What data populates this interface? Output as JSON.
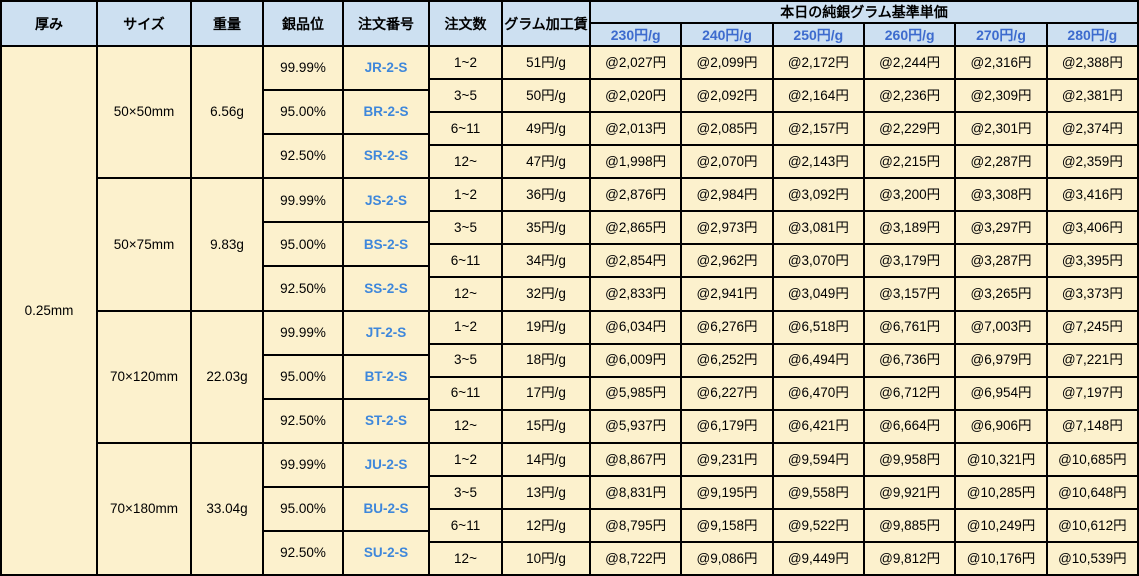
{
  "chart_data": {
    "type": "table",
    "columns": {
      "thickness": "厚み",
      "size": "サイズ",
      "weight": "重量",
      "purity": "銀品位",
      "order_no": "注文番号",
      "order_qty": "注文数",
      "gram_fee": "グラム加工賃",
      "price_group": "本日の純銀グラム基準単価"
    },
    "price_tiers": [
      "230円/g",
      "240円/g",
      "250円/g",
      "260円/g",
      "270円/g",
      "280円/g"
    ],
    "thickness": "0.25mm",
    "blocks": [
      {
        "size": "50×50mm",
        "weight": "6.56g",
        "purities": [
          {
            "purity": "99.99%",
            "order_no": "JR-2-S"
          },
          {
            "purity": "95.00%",
            "order_no": "BR-2-S"
          },
          {
            "purity": "92.50%",
            "order_no": "SR-2-S"
          }
        ],
        "rows": [
          {
            "qty": "1~2",
            "fee": "51円/g",
            "prices": [
              "@2,027円",
              "@2,099円",
              "@2,172円",
              "@2,244円",
              "@2,316円",
              "@2,388円"
            ]
          },
          {
            "qty": "3~5",
            "fee": "50円/g",
            "prices": [
              "@2,020円",
              "@2,092円",
              "@2,164円",
              "@2,236円",
              "@2,309円",
              "@2,381円"
            ]
          },
          {
            "qty": "6~11",
            "fee": "49円/g",
            "prices": [
              "@2,013円",
              "@2,085円",
              "@2,157円",
              "@2,229円",
              "@2,301円",
              "@2,374円"
            ]
          },
          {
            "qty": "12~",
            "fee": "47円/g",
            "prices": [
              "@1,998円",
              "@2,070円",
              "@2,143円",
              "@2,215円",
              "@2,287円",
              "@2,359円"
            ]
          }
        ]
      },
      {
        "size": "50×75mm",
        "weight": "9.83g",
        "purities": [
          {
            "purity": "99.99%",
            "order_no": "JS-2-S"
          },
          {
            "purity": "95.00%",
            "order_no": "BS-2-S"
          },
          {
            "purity": "92.50%",
            "order_no": "SS-2-S"
          }
        ],
        "rows": [
          {
            "qty": "1~2",
            "fee": "36円/g",
            "prices": [
              "@2,876円",
              "@2,984円",
              "@3,092円",
              "@3,200円",
              "@3,308円",
              "@3,416円"
            ]
          },
          {
            "qty": "3~5",
            "fee": "35円/g",
            "prices": [
              "@2,865円",
              "@2,973円",
              "@3,081円",
              "@3,189円",
              "@3,297円",
              "@3,406円"
            ]
          },
          {
            "qty": "6~11",
            "fee": "34円/g",
            "prices": [
              "@2,854円",
              "@2,962円",
              "@3,070円",
              "@3,179円",
              "@3,287円",
              "@3,395円"
            ]
          },
          {
            "qty": "12~",
            "fee": "32円/g",
            "prices": [
              "@2,833円",
              "@2,941円",
              "@3,049円",
              "@3,157円",
              "@3,265円",
              "@3,373円"
            ]
          }
        ]
      },
      {
        "size": "70×120mm",
        "weight": "22.03g",
        "purities": [
          {
            "purity": "99.99%",
            "order_no": "JT-2-S"
          },
          {
            "purity": "95.00%",
            "order_no": "BT-2-S"
          },
          {
            "purity": "92.50%",
            "order_no": "ST-2-S"
          }
        ],
        "rows": [
          {
            "qty": "1~2",
            "fee": "19円/g",
            "prices": [
              "@6,034円",
              "@6,276円",
              "@6,518円",
              "@6,761円",
              "@7,003円",
              "@7,245円"
            ]
          },
          {
            "qty": "3~5",
            "fee": "18円/g",
            "prices": [
              "@6,009円",
              "@6,252円",
              "@6,494円",
              "@6,736円",
              "@6,979円",
              "@7,221円"
            ]
          },
          {
            "qty": "6~11",
            "fee": "17円/g",
            "prices": [
              "@5,985円",
              "@6,227円",
              "@6,470円",
              "@6,712円",
              "@6,954円",
              "@7,197円"
            ]
          },
          {
            "qty": "12~",
            "fee": "15円/g",
            "prices": [
              "@5,937円",
              "@6,179円",
              "@6,421円",
              "@6,664円",
              "@6,906円",
              "@7,148円"
            ]
          }
        ]
      },
      {
        "size": "70×180mm",
        "weight": "33.04g",
        "purities": [
          {
            "purity": "99.99%",
            "order_no": "JU-2-S"
          },
          {
            "purity": "95.00%",
            "order_no": "BU-2-S"
          },
          {
            "purity": "92.50%",
            "order_no": "SU-2-S"
          }
        ],
        "rows": [
          {
            "qty": "1~2",
            "fee": "14円/g",
            "prices": [
              "@8,867円",
              "@9,231円",
              "@9,594円",
              "@9,958円",
              "@10,321円",
              "@10,685円"
            ]
          },
          {
            "qty": "3~5",
            "fee": "13円/g",
            "prices": [
              "@8,831円",
              "@9,195円",
              "@9,558円",
              "@9,921円",
              "@10,285円",
              "@10,648円"
            ]
          },
          {
            "qty": "6~11",
            "fee": "12円/g",
            "prices": [
              "@8,795円",
              "@9,158円",
              "@9,522円",
              "@9,885円",
              "@10,249円",
              "@10,612円"
            ]
          },
          {
            "qty": "12~",
            "fee": "10円/g",
            "prices": [
              "@8,722円",
              "@9,086円",
              "@9,449円",
              "@9,812円",
              "@10,176円",
              "@10,539円"
            ]
          }
        ]
      }
    ],
    "colors": {
      "header_bg": "#CDE0F1",
      "body_bg": "#FCF1CD",
      "grid": "#000000",
      "text": "#000000",
      "tier_text": "#3D6BCE",
      "order_no_text": "#3E87DB"
    }
  }
}
